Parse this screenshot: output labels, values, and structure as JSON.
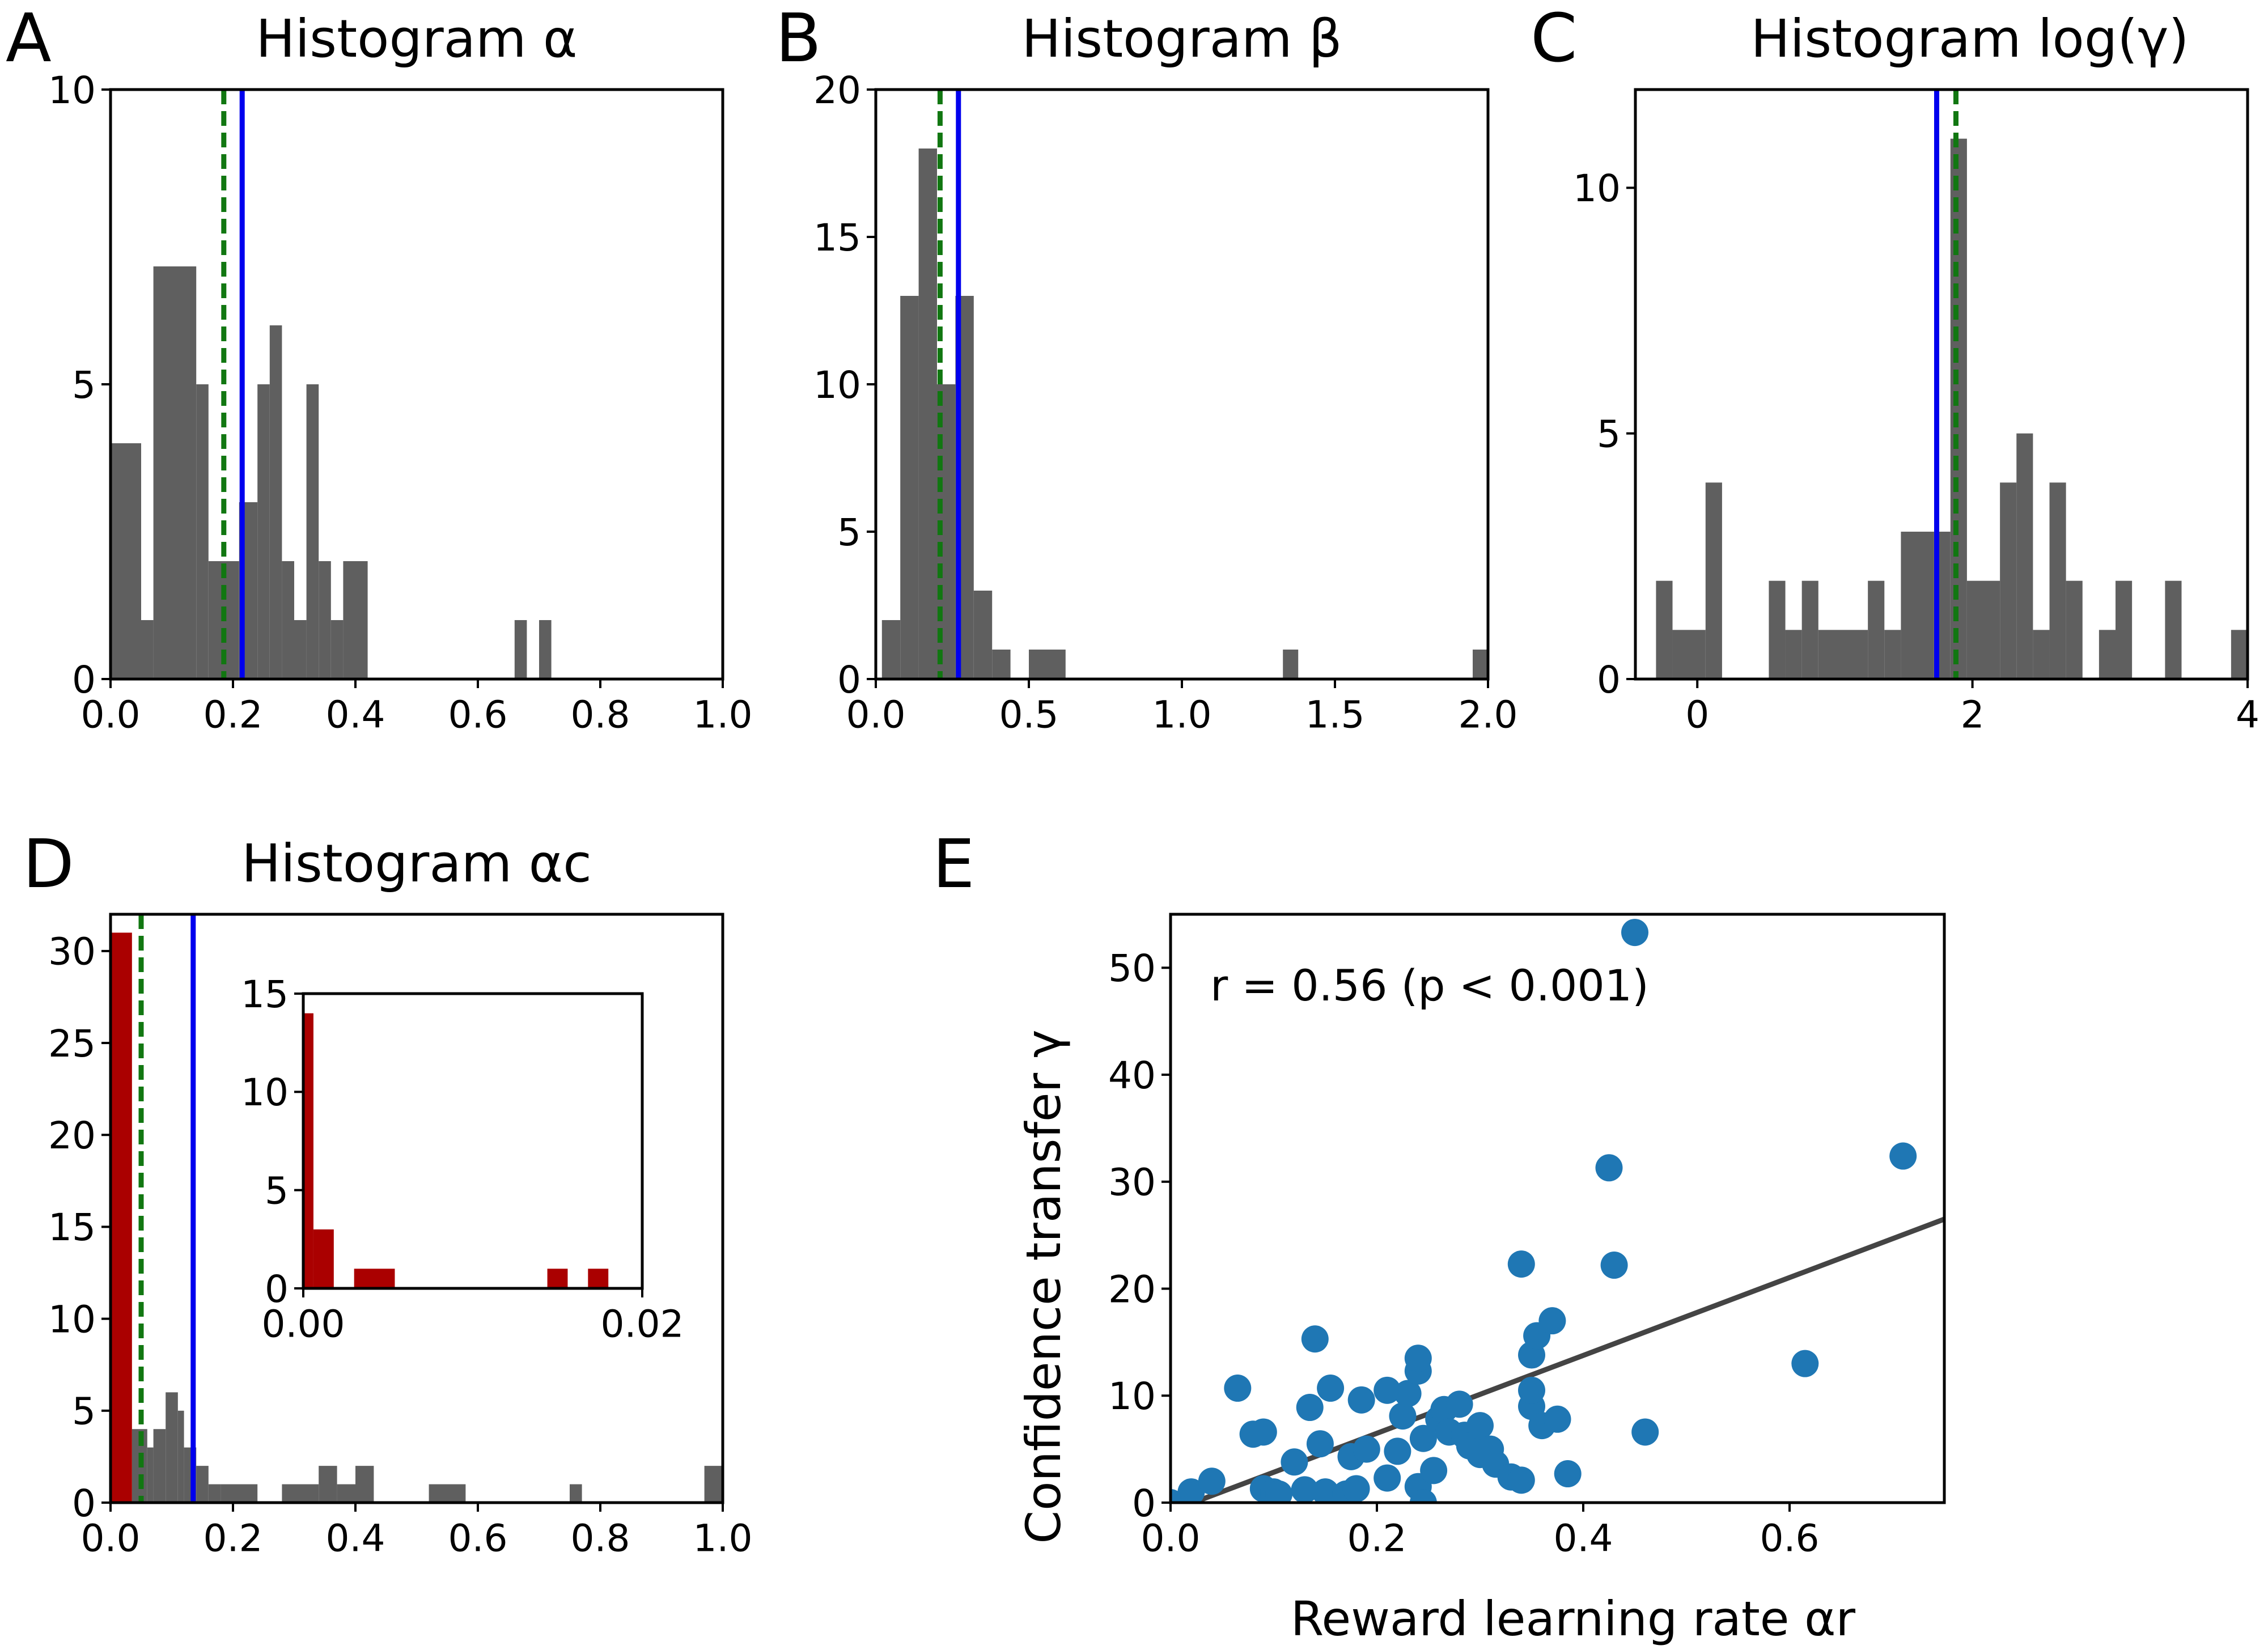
{
  "colors": {
    "bar": "#5f5f5f",
    "bar_small": "#aa0000",
    "median_line": "#0000ee",
    "mean_line": "#117711",
    "scatter": "#1f77b4",
    "fit_line": "#444444"
  },
  "chart_data": [
    {
      "panel": "A",
      "type": "bar",
      "title": "Histogram α",
      "xlim": [
        0,
        1
      ],
      "ylim": [
        0,
        10
      ],
      "xticks": [
        0,
        0.2,
        0.4,
        0.6,
        0.8,
        1.0
      ],
      "xtick_labels": [
        "0.0",
        "0.2",
        "0.4",
        "0.6",
        "0.8",
        "1.0"
      ],
      "yticks": [
        0,
        5,
        10
      ],
      "ytick_labels": [
        "0",
        "5",
        "10"
      ],
      "bins": [
        {
          "x0": 0.0,
          "x1": 0.05,
          "y": 4
        },
        {
          "x0": 0.05,
          "x1": 0.07,
          "y": 1
        },
        {
          "x0": 0.07,
          "x1": 0.14,
          "y": 7
        },
        {
          "x0": 0.14,
          "x1": 0.16,
          "y": 5
        },
        {
          "x0": 0.16,
          "x1": 0.21,
          "y": 2
        },
        {
          "x0": 0.21,
          "x1": 0.24,
          "y": 3
        },
        {
          "x0": 0.24,
          "x1": 0.26,
          "y": 5
        },
        {
          "x0": 0.26,
          "x1": 0.28,
          "y": 6
        },
        {
          "x0": 0.28,
          "x1": 0.3,
          "y": 2
        },
        {
          "x0": 0.3,
          "x1": 0.32,
          "y": 1
        },
        {
          "x0": 0.32,
          "x1": 0.34,
          "y": 5
        },
        {
          "x0": 0.34,
          "x1": 0.36,
          "y": 2
        },
        {
          "x0": 0.36,
          "x1": 0.38,
          "y": 1
        },
        {
          "x0": 0.38,
          "x1": 0.42,
          "y": 2
        },
        {
          "x0": 0.66,
          "x1": 0.68,
          "y": 1
        },
        {
          "x0": 0.7,
          "x1": 0.72,
          "y": 1
        }
      ],
      "vlines": [
        {
          "x": 0.185,
          "style": "dashed",
          "color_key": "mean_line"
        },
        {
          "x": 0.215,
          "style": "solid",
          "color_key": "median_line"
        }
      ]
    },
    {
      "panel": "B",
      "type": "bar",
      "title": "Histogram β",
      "xlim": [
        0,
        2
      ],
      "ylim": [
        0,
        20
      ],
      "xticks": [
        0,
        0.5,
        1.0,
        1.5,
        2.0
      ],
      "xtick_labels": [
        "0.0",
        "0.5",
        "1.0",
        "1.5",
        "2.0"
      ],
      "yticks": [
        0,
        5,
        10,
        15,
        20
      ],
      "ytick_labels": [
        "0",
        "5",
        "10",
        "15",
        "20"
      ],
      "bins": [
        {
          "x0": 0.02,
          "x1": 0.08,
          "y": 2
        },
        {
          "x0": 0.08,
          "x1": 0.14,
          "y": 13
        },
        {
          "x0": 0.14,
          "x1": 0.2,
          "y": 18
        },
        {
          "x0": 0.2,
          "x1": 0.26,
          "y": 10
        },
        {
          "x0": 0.26,
          "x1": 0.32,
          "y": 13
        },
        {
          "x0": 0.32,
          "x1": 0.38,
          "y": 3
        },
        {
          "x0": 0.38,
          "x1": 0.44,
          "y": 1
        },
        {
          "x0": 0.5,
          "x1": 0.62,
          "y": 1
        },
        {
          "x0": 1.33,
          "x1": 1.38,
          "y": 1
        },
        {
          "x0": 1.95,
          "x1": 2.0,
          "y": 1
        }
      ],
      "vlines": [
        {
          "x": 0.21,
          "style": "dashed",
          "color_key": "mean_line"
        },
        {
          "x": 0.27,
          "style": "solid",
          "color_key": "median_line"
        }
      ]
    },
    {
      "panel": "C",
      "type": "bar",
      "title": "Histogram log(γ)",
      "xlim": [
        -0.45,
        4.0
      ],
      "ylim": [
        0,
        12
      ],
      "xticks": [
        0,
        2,
        4
      ],
      "xtick_labels": [
        "0",
        "2",
        "4"
      ],
      "yticks": [
        0,
        5,
        10
      ],
      "ytick_labels": [
        "0",
        "5",
        "10"
      ],
      "bins": [
        {
          "x0": -0.3,
          "x1": -0.18,
          "y": 2
        },
        {
          "x0": -0.18,
          "x1": 0.06,
          "y": 1
        },
        {
          "x0": 0.06,
          "x1": 0.18,
          "y": 4
        },
        {
          "x0": 0.52,
          "x1": 0.64,
          "y": 2
        },
        {
          "x0": 0.64,
          "x1": 0.76,
          "y": 1
        },
        {
          "x0": 0.76,
          "x1": 0.88,
          "y": 2
        },
        {
          "x0": 0.88,
          "x1": 1.24,
          "y": 1
        },
        {
          "x0": 1.24,
          "x1": 1.36,
          "y": 2
        },
        {
          "x0": 1.36,
          "x1": 1.48,
          "y": 1
        },
        {
          "x0": 1.48,
          "x1": 1.72,
          "y": 3
        },
        {
          "x0": 1.72,
          "x1": 1.84,
          "y": 3
        },
        {
          "x0": 1.84,
          "x1": 1.96,
          "y": 11
        },
        {
          "x0": 1.96,
          "x1": 2.2,
          "y": 2
        },
        {
          "x0": 2.2,
          "x1": 2.32,
          "y": 4
        },
        {
          "x0": 2.32,
          "x1": 2.44,
          "y": 5
        },
        {
          "x0": 2.44,
          "x1": 2.56,
          "y": 1
        },
        {
          "x0": 2.56,
          "x1": 2.68,
          "y": 4
        },
        {
          "x0": 2.68,
          "x1": 2.8,
          "y": 2
        },
        {
          "x0": 2.92,
          "x1": 3.04,
          "y": 1
        },
        {
          "x0": 3.04,
          "x1": 3.16,
          "y": 2
        },
        {
          "x0": 3.4,
          "x1": 3.52,
          "y": 2
        },
        {
          "x0": 3.88,
          "x1": 4.0,
          "y": 1
        }
      ],
      "vlines": [
        {
          "x": 1.88,
          "style": "dashed",
          "color_key": "mean_line"
        },
        {
          "x": 1.74,
          "style": "solid",
          "color_key": "median_line"
        }
      ]
    },
    {
      "panel": "D",
      "type": "bar",
      "title": "Histogram αc",
      "xlim": [
        0,
        1
      ],
      "ylim": [
        0,
        32
      ],
      "xticks": [
        0,
        0.2,
        0.4,
        0.6,
        0.8,
        1.0
      ],
      "xtick_labels": [
        "0.0",
        "0.2",
        "0.4",
        "0.6",
        "0.8",
        "1.0"
      ],
      "yticks": [
        0,
        5,
        10,
        15,
        20,
        25,
        30
      ],
      "ytick_labels": [
        "0",
        "5",
        "10",
        "15",
        "20",
        "25",
        "30"
      ],
      "bins_small": [
        {
          "x0": 0.0,
          "x1": 0.035,
          "y": 31
        }
      ],
      "bins": [
        {
          "x0": 0.035,
          "x1": 0.06,
          "y": 4
        },
        {
          "x0": 0.06,
          "x1": 0.07,
          "y": 3
        },
        {
          "x0": 0.07,
          "x1": 0.09,
          "y": 4
        },
        {
          "x0": 0.09,
          "x1": 0.11,
          "y": 6
        },
        {
          "x0": 0.11,
          "x1": 0.12,
          "y": 5
        },
        {
          "x0": 0.12,
          "x1": 0.14,
          "y": 3
        },
        {
          "x0": 0.14,
          "x1": 0.16,
          "y": 2
        },
        {
          "x0": 0.16,
          "x1": 0.18,
          "y": 1
        },
        {
          "x0": 0.18,
          "x1": 0.24,
          "y": 1
        },
        {
          "x0": 0.28,
          "x1": 0.34,
          "y": 1
        },
        {
          "x0": 0.34,
          "x1": 0.37,
          "y": 2
        },
        {
          "x0": 0.37,
          "x1": 0.4,
          "y": 1
        },
        {
          "x0": 0.4,
          "x1": 0.43,
          "y": 2
        },
        {
          "x0": 0.52,
          "x1": 0.58,
          "y": 1
        },
        {
          "x0": 0.75,
          "x1": 0.77,
          "y": 1
        },
        {
          "x0": 0.97,
          "x1": 1.0,
          "y": 2
        }
      ],
      "vlines": [
        {
          "x": 0.05,
          "style": "dashed",
          "color_key": "mean_line"
        },
        {
          "x": 0.135,
          "style": "solid",
          "color_key": "median_line"
        }
      ],
      "inset": {
        "type": "bar",
        "xlim": [
          0,
          0.02
        ],
        "ylim": [
          0,
          15
        ],
        "xticks": [
          0,
          0.02
        ],
        "xtick_labels": [
          "0.00",
          "0.02"
        ],
        "yticks": [
          0,
          5,
          10,
          15
        ],
        "ytick_labels": [
          "0",
          "5",
          "10",
          "15"
        ],
        "bins": [
          {
            "x0": 0.0,
            "x1": 0.0006,
            "y": 14
          },
          {
            "x0": 0.0006,
            "x1": 0.0018,
            "y": 3
          },
          {
            "x0": 0.0018,
            "x1": 0.003,
            "y": 0
          },
          {
            "x0": 0.003,
            "x1": 0.0054,
            "y": 1
          },
          {
            "x0": 0.0144,
            "x1": 0.0156,
            "y": 1
          },
          {
            "x0": 0.0168,
            "x1": 0.018,
            "y": 1
          }
        ]
      }
    },
    {
      "panel": "E",
      "type": "scatter",
      "xlabel": "Reward learning rate αr",
      "ylabel": "Confidence transfer γ",
      "xlim": [
        0,
        0.75
      ],
      "ylim": [
        0,
        55
      ],
      "xticks": [
        0,
        0.2,
        0.4,
        0.6
      ],
      "xtick_labels": [
        "0.0",
        "0.2",
        "0.4",
        "0.6"
      ],
      "yticks": [
        0,
        10,
        20,
        30,
        40,
        50
      ],
      "ytick_labels": [
        "0",
        "10",
        "20",
        "30",
        "40",
        "50"
      ],
      "annotation": "r = 0.56  (p < 0.001)",
      "fit": {
        "x": [
          0.0,
          0.75
        ],
        "y": [
          -0.8,
          26.5
        ]
      },
      "points": [
        [
          0.0,
          0.0
        ],
        [
          0.02,
          1.0
        ],
        [
          0.04,
          2.0
        ],
        [
          0.065,
          10.7
        ],
        [
          0.08,
          6.4
        ],
        [
          0.09,
          6.6
        ],
        [
          0.09,
          1.3
        ],
        [
          0.1,
          1.0
        ],
        [
          0.105,
          0.8
        ],
        [
          0.12,
          3.8
        ],
        [
          0.13,
          1.2
        ],
        [
          0.135,
          8.9
        ],
        [
          0.14,
          15.3
        ],
        [
          0.145,
          5.5
        ],
        [
          0.15,
          1.0
        ],
        [
          0.155,
          10.7
        ],
        [
          0.17,
          0.8
        ],
        [
          0.175,
          4.3
        ],
        [
          0.18,
          1.3
        ],
        [
          0.185,
          9.6
        ],
        [
          0.19,
          5.0
        ],
        [
          0.21,
          2.3
        ],
        [
          0.21,
          10.5
        ],
        [
          0.22,
          4.8
        ],
        [
          0.225,
          8.1
        ],
        [
          0.23,
          10.2
        ],
        [
          0.24,
          12.3
        ],
        [
          0.24,
          13.5
        ],
        [
          0.24,
          1.5
        ],
        [
          0.245,
          6.0
        ],
        [
          0.245,
          0.0
        ],
        [
          0.255,
          3.0
        ],
        [
          0.26,
          7.8
        ],
        [
          0.265,
          8.7
        ],
        [
          0.27,
          6.6
        ],
        [
          0.28,
          9.2
        ],
        [
          0.285,
          6.3
        ],
        [
          0.29,
          5.3
        ],
        [
          0.3,
          4.5
        ],
        [
          0.3,
          7.2
        ],
        [
          0.31,
          5.0
        ],
        [
          0.315,
          3.6
        ],
        [
          0.33,
          2.4
        ],
        [
          0.34,
          2.1
        ],
        [
          0.34,
          22.3
        ],
        [
          0.35,
          9.0
        ],
        [
          0.35,
          13.8
        ],
        [
          0.35,
          10.5
        ],
        [
          0.355,
          15.6
        ],
        [
          0.36,
          7.2
        ],
        [
          0.37,
          17.0
        ],
        [
          0.375,
          7.8
        ],
        [
          0.385,
          2.7
        ],
        [
          0.425,
          31.3
        ],
        [
          0.43,
          22.2
        ],
        [
          0.45,
          53.3
        ],
        [
          0.46,
          6.6
        ],
        [
          0.615,
          13.0
        ],
        [
          0.71,
          32.4
        ]
      ]
    }
  ]
}
